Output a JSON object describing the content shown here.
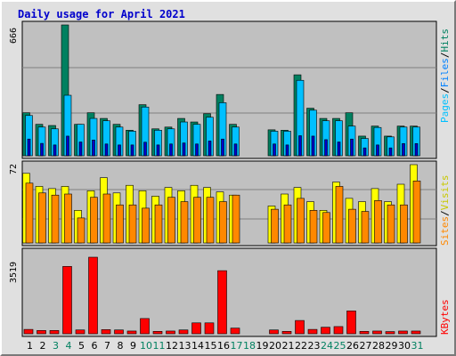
{
  "title": "Daily usage for April 2021",
  "colors": {
    "hits": "#008060",
    "files": "#00c0ff",
    "pages": "#00c0ff",
    "visits": "#ffff00",
    "sites": "#ff8800",
    "kbytes": "#ff0000",
    "weekday_label": "#000000",
    "weekend_label": "#008060"
  },
  "legend": {
    "top": {
      "pages": "Pages",
      "files": "Files",
      "hits": "Hits",
      "sep1": "/",
      "sep2": "/"
    },
    "middle": {
      "sites": "Sites",
      "visits": "Visits",
      "sep": "/"
    },
    "bottom": {
      "kbytes": "KBytes"
    }
  },
  "chart_data": [
    {
      "type": "bar",
      "title": "Hits / Files / Pages",
      "max_label": "666",
      "ylim": [
        0,
        666
      ],
      "categories": [
        "1",
        "2",
        "3",
        "4",
        "5",
        "6",
        "7",
        "8",
        "9",
        "10",
        "11",
        "12",
        "13",
        "14",
        "15",
        "16",
        "17",
        "18",
        "19",
        "20",
        "21",
        "22",
        "23",
        "24",
        "25",
        "26",
        "27",
        "28",
        "29",
        "30",
        "31"
      ],
      "series": [
        {
          "name": "Hits",
          "values": [
            219,
            160,
            154,
            666,
            160,
            219,
            190,
            160,
            130,
            260,
            137,
            146,
            190,
            172,
            214,
            312,
            160,
            0,
            0,
            132,
            130,
            412,
            242,
            190,
            190,
            219,
            100,
            151,
            100,
            151,
            151
          ]
        },
        {
          "name": "Files",
          "values": [
            205,
            146,
            137,
            308,
            160,
            190,
            178,
            146,
            125,
            248,
            130,
            137,
            172,
            160,
            196,
            270,
            146,
            0,
            0,
            125,
            125,
            384,
            232,
            178,
            178,
            151,
            88,
            144,
            96,
            146,
            146
          ]
        },
        {
          "name": "Pages",
          "values": [
            85,
            63,
            55,
            100,
            70,
            80,
            60,
            55,
            55,
            69,
            55,
            60,
            65,
            60,
            75,
            85,
            60,
            0,
            0,
            60,
            55,
            102,
            100,
            82,
            70,
            85,
            40,
            55,
            40,
            62,
            62
          ]
        }
      ]
    },
    {
      "type": "bar",
      "title": "Visits / Sites",
      "max_label": "72",
      "ylim": [
        0,
        72
      ],
      "categories": [
        "1",
        "2",
        "3",
        "4",
        "5",
        "6",
        "7",
        "8",
        "9",
        "10",
        "11",
        "12",
        "13",
        "14",
        "15",
        "16",
        "17",
        "18",
        "19",
        "20",
        "21",
        "22",
        "23",
        "24",
        "25",
        "26",
        "27",
        "28",
        "29",
        "30",
        "31"
      ],
      "series": [
        {
          "name": "Visits",
          "values": [
            64,
            52,
            50,
            52,
            30,
            48,
            60,
            46,
            53,
            48,
            43,
            51,
            48,
            53,
            51,
            47,
            44,
            0,
            0,
            34,
            45,
            51,
            38,
            30,
            56,
            41,
            38,
            50,
            38,
            54,
            72
          ]
        },
        {
          "name": "Sites",
          "values": [
            55,
            46,
            44,
            45,
            23,
            42,
            45,
            35,
            35,
            32,
            35,
            42,
            38,
            42,
            42,
            38,
            44,
            0,
            0,
            31,
            35,
            41,
            30,
            28,
            52,
            31,
            29,
            39,
            35,
            35,
            57
          ]
        }
      ]
    },
    {
      "type": "bar",
      "title": "KBytes",
      "max_label": "3519",
      "ylim": [
        0,
        3519
      ],
      "categories": [
        "1",
        "2",
        "3",
        "4",
        "5",
        "6",
        "7",
        "8",
        "9",
        "10",
        "11",
        "12",
        "13",
        "14",
        "15",
        "16",
        "17",
        "18",
        "19",
        "20",
        "21",
        "22",
        "23",
        "24",
        "25",
        "26",
        "27",
        "28",
        "29",
        "30",
        "31"
      ],
      "series": [
        {
          "name": "KBytes",
          "values": [
            200,
            150,
            150,
            3095,
            175,
            3519,
            190,
            175,
            125,
            700,
            110,
            125,
            175,
            500,
            500,
            2900,
            260,
            0,
            0,
            175,
            110,
            610,
            200,
            300,
            330,
            1050,
            110,
            125,
            100,
            125,
            125
          ]
        }
      ]
    }
  ],
  "x_labels": {
    "days": [
      "1",
      "2",
      "3",
      "4",
      "5",
      "6",
      "7",
      "8",
      "9",
      "10",
      "11",
      "12",
      "13",
      "14",
      "15",
      "16",
      "17",
      "18",
      "19",
      "20",
      "21",
      "22",
      "23",
      "24",
      "25",
      "26",
      "27",
      "28",
      "29",
      "30",
      "31"
    ],
    "weekend_days": [
      "3",
      "4",
      "10",
      "11",
      "17",
      "18",
      "24",
      "25",
      "31"
    ]
  }
}
